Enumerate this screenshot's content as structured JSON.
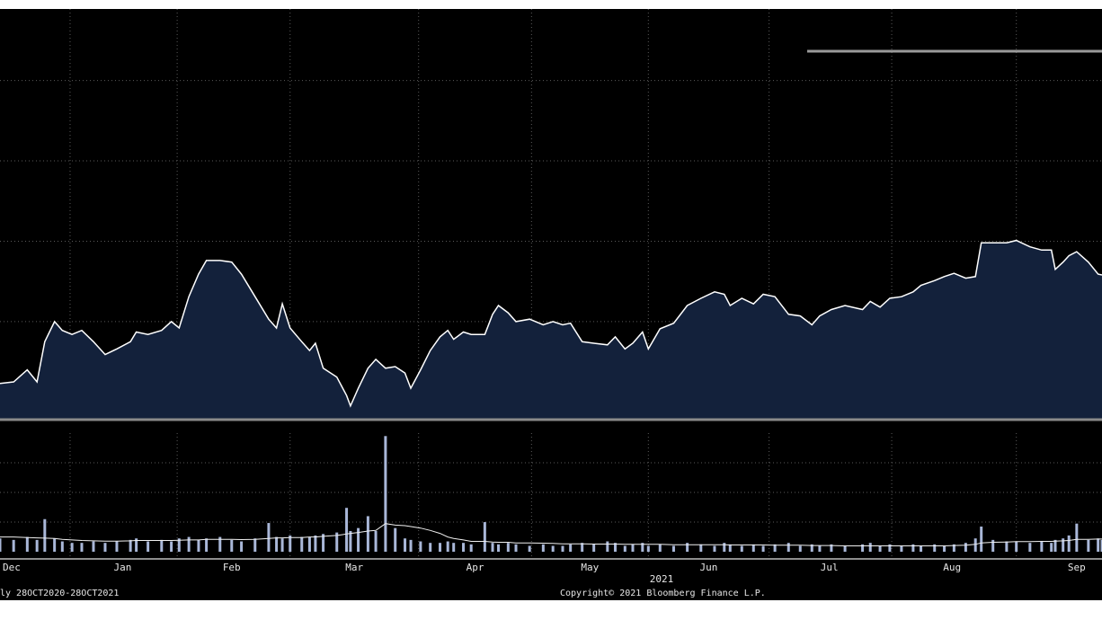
{
  "chart_data": [
    {
      "type": "area",
      "color": "#13213b",
      "line_color": "#ffffff",
      "x": [
        -18,
        -14.5,
        -11,
        -8.5,
        -6.5,
        -4,
        -2,
        0.5,
        3,
        6,
        9,
        12,
        15.5,
        17,
        20,
        23.5,
        26,
        28,
        30.5,
        33,
        35,
        38.5,
        41.5,
        44,
        47.5,
        51,
        53,
        54.5,
        56.5,
        59.5,
        61.5,
        63,
        65,
        68.5,
        71,
        72,
        74,
        76.5,
        78.5,
        81,
        83.5,
        86,
        87.5,
        90,
        92.5,
        95,
        97,
        98.5,
        101,
        103,
        106.5,
        108.5,
        110,
        112.5,
        114.5,
        118,
        121.5,
        124,
        126.5,
        128.5,
        131.5,
        134.5,
        138,
        140,
        142.5,
        144.5,
        147,
        148.5,
        151.5,
        155,
        158.5,
        162,
        165.5,
        168,
        169.5,
        172.5,
        175.5,
        178,
        181,
        184.5,
        187.5,
        190.5,
        192.5,
        195.5,
        199,
        203.5,
        205.5,
        208,
        210.5,
        213.5,
        216.5,
        218.5,
        222,
        224.5,
        227,
        230,
        232.5,
        234,
        237,
        240.5,
        243,
        246.5,
        249.5,
        252,
        253,
        255,
        256.5,
        258.5,
        261.5,
        264,
        265
      ],
      "values": [
        0.23,
        0.25,
        0.4,
        0.25,
        0.75,
        1.0,
        0.89,
        0.84,
        0.89,
        0.75,
        0.59,
        0.66,
        0.75,
        0.87,
        0.84,
        0.89,
        1.0,
        0.92,
        1.31,
        1.59,
        1.76,
        1.76,
        1.74,
        1.59,
        1.31,
        1.03,
        0.92,
        1.22,
        0.92,
        0.75,
        0.64,
        0.73,
        0.42,
        0.31,
        0.08,
        -0.05,
        0.17,
        0.42,
        0.53,
        0.42,
        0.44,
        0.36,
        0.17,
        0.4,
        0.64,
        0.81,
        0.89,
        0.78,
        0.87,
        0.84,
        0.84,
        1.09,
        1.2,
        1.11,
        1.0,
        1.03,
        0.96,
        1.0,
        0.96,
        0.98,
        0.75,
        0.73,
        0.71,
        0.81,
        0.66,
        0.73,
        0.87,
        0.66,
        0.91,
        0.98,
        1.2,
        1.29,
        1.37,
        1.34,
        1.2,
        1.29,
        1.22,
        1.34,
        1.31,
        1.09,
        1.07,
        0.96,
        1.07,
        1.15,
        1.2,
        1.15,
        1.25,
        1.18,
        1.29,
        1.31,
        1.37,
        1.45,
        1.51,
        1.56,
        1.6,
        1.54,
        1.56,
        1.98,
        1.98,
        1.98,
        2.01,
        1.93,
        1.89,
        1.89,
        1.65,
        1.74,
        1.82,
        1.87,
        1.74,
        1.59,
        1.58
      ],
      "xlim": [
        -18,
        265
      ],
      "ylim": [
        -0.22,
        4.89
      ],
      "yticks": [
        1,
        2,
        3,
        4
      ],
      "xgrid": [
        0,
        27.5,
        56.5,
        89.5,
        118.5,
        148.5,
        179.5,
        211,
        243
      ],
      "grid": true
    },
    {
      "type": "bar",
      "x": [
        -18,
        -14.5,
        -11,
        -8.5,
        -6.5,
        -4,
        -2,
        0.5,
        3,
        6,
        9,
        12,
        15.5,
        17,
        20,
        23.5,
        26,
        28,
        30.5,
        33,
        35,
        38.5,
        41.5,
        44,
        47.5,
        51,
        53,
        54.5,
        56.5,
        59.5,
        61.5,
        63,
        65,
        68.5,
        71,
        72,
        74,
        76.5,
        78.5,
        81,
        83.5,
        86,
        87.5,
        90,
        92.5,
        95,
        97,
        98.5,
        101,
        103,
        106.5,
        108.5,
        110,
        112.5,
        114.5,
        118,
        121.5,
        124,
        126.5,
        128.5,
        131.5,
        134.5,
        138,
        140,
        142.5,
        144.5,
        147,
        148.5,
        151.5,
        155,
        158.5,
        162,
        165.5,
        168,
        169.5,
        172.5,
        175.5,
        178,
        181,
        184.5,
        187.5,
        190.5,
        192.5,
        195.5,
        199,
        203.5,
        205.5,
        208,
        210.5,
        213.5,
        216.5,
        218.5,
        222,
        224.5,
        227,
        230,
        232.5,
        234,
        237,
        240.5,
        243,
        246.5,
        249.5,
        252,
        253,
        255,
        256.5,
        258.5,
        261.5,
        264,
        265
      ],
      "series": [
        {
          "type": "bar",
          "color": "#a9b7d8",
          "values": [
            0.45,
            0.4,
            0.5,
            0.4,
            1.1,
            0.45,
            0.35,
            0.3,
            0.3,
            0.35,
            0.3,
            0.35,
            0.4,
            0.45,
            0.35,
            0.4,
            0.35,
            0.45,
            0.5,
            0.4,
            0.45,
            0.5,
            0.4,
            0.35,
            0.45,
            0.97,
            0.5,
            0.45,
            0.55,
            0.5,
            0.5,
            0.55,
            0.6,
            0.65,
            1.48,
            0.7,
            0.8,
            1.2,
            0.7,
            3.9,
            0.8,
            0.45,
            0.4,
            0.35,
            0.3,
            0.3,
            0.35,
            0.3,
            0.3,
            0.25,
            1.0,
            0.3,
            0.25,
            0.3,
            0.25,
            0.2,
            0.25,
            0.2,
            0.2,
            0.25,
            0.3,
            0.25,
            0.35,
            0.3,
            0.2,
            0.25,
            0.3,
            0.2,
            0.25,
            0.2,
            0.3,
            0.25,
            0.2,
            0.3,
            0.25,
            0.2,
            0.25,
            0.2,
            0.25,
            0.3,
            0.2,
            0.25,
            0.2,
            0.25,
            0.2,
            0.25,
            0.3,
            0.2,
            0.25,
            0.2,
            0.25,
            0.2,
            0.25,
            0.2,
            0.25,
            0.3,
            0.45,
            0.85,
            0.4,
            0.35,
            0.35,
            0.3,
            0.35,
            0.3,
            0.4,
            0.45,
            0.55,
            0.95,
            0.4,
            0.45,
            0.4
          ]
        },
        {
          "type": "line",
          "color": "#f0f0f0",
          "values": [
            0.5,
            0.5,
            0.48,
            0.47,
            0.46,
            0.45,
            0.42,
            0.4,
            0.38,
            0.37,
            0.36,
            0.36,
            0.37,
            0.38,
            0.38,
            0.38,
            0.38,
            0.39,
            0.4,
            0.4,
            0.42,
            0.42,
            0.42,
            0.41,
            0.42,
            0.45,
            0.47,
            0.47,
            0.48,
            0.48,
            0.5,
            0.5,
            0.52,
            0.55,
            0.6,
            0.62,
            0.65,
            0.7,
            0.72,
            0.95,
            0.9,
            0.88,
            0.85,
            0.8,
            0.72,
            0.62,
            0.5,
            0.45,
            0.4,
            0.35,
            0.35,
            0.33,
            0.32,
            0.32,
            0.3,
            0.3,
            0.29,
            0.28,
            0.27,
            0.27,
            0.27,
            0.26,
            0.26,
            0.26,
            0.25,
            0.25,
            0.25,
            0.25,
            0.25,
            0.24,
            0.24,
            0.24,
            0.24,
            0.24,
            0.23,
            0.23,
            0.23,
            0.23,
            0.22,
            0.22,
            0.22,
            0.21,
            0.21,
            0.21,
            0.2,
            0.2,
            0.2,
            0.2,
            0.2,
            0.2,
            0.2,
            0.2,
            0.2,
            0.2,
            0.21,
            0.22,
            0.25,
            0.3,
            0.32,
            0.33,
            0.34,
            0.34,
            0.35,
            0.35,
            0.36,
            0.37,
            0.38,
            0.42,
            0.42,
            0.43,
            0.43
          ]
        }
      ],
      "xlim": [
        -18,
        265
      ],
      "ylim": [
        -0.24,
        4
      ],
      "yticks": [
        1,
        2,
        3
      ],
      "xgrid": [
        0,
        27.5,
        56.5,
        89.5,
        118.5,
        148.5,
        179.5,
        211,
        243
      ],
      "grid": true,
      "xticks": [
        {
          "value": -15,
          "label": "Dec"
        },
        {
          "value": 13.5,
          "label": "Jan"
        },
        {
          "value": 41.5,
          "label": "Feb"
        },
        {
          "value": 73,
          "label": "Mar"
        },
        {
          "value": 104,
          "label": "Apr"
        },
        {
          "value": 133.5,
          "label": "May"
        },
        {
          "value": 164,
          "label": "Jun"
        },
        {
          "value": 195,
          "label": "Jul"
        },
        {
          "value": 226.5,
          "label": "Aug"
        },
        {
          "value": 258.5,
          "label": "Sep"
        }
      ],
      "xlabel": "2021"
    }
  ],
  "footer": {
    "date_range": "ly 28OCT2020-28OCT2021",
    "copyright": "Copyright© 2021 Bloomberg Finance L.P."
  }
}
